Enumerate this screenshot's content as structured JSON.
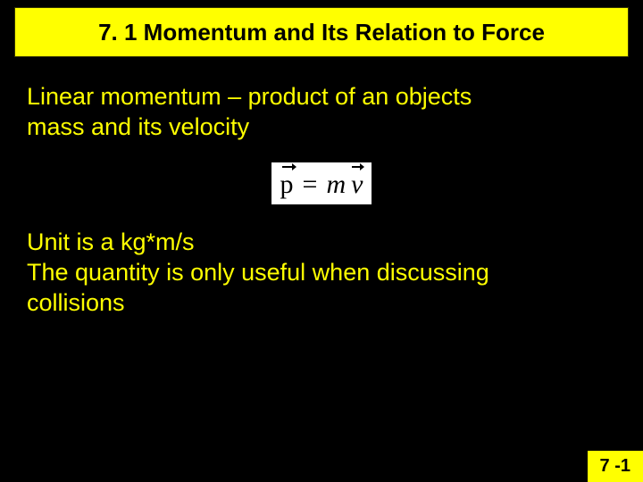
{
  "title": "7. 1 Momentum and Its Relation to Force",
  "body": {
    "definition_line1": "Linear momentum – product of an objects",
    "definition_line2": "mass and its velocity",
    "equation": {
      "lhs": "p",
      "operator": "=",
      "rhs_m": "m",
      "rhs_v": "v"
    },
    "unit_line": "Unit is a kg*m/s",
    "useful_line1": "The quantity is only useful when discussing",
    "useful_line2": "collisions"
  },
  "page_number": "7 -1",
  "colors": {
    "background": "#000000",
    "accent": "#ffff00",
    "text_on_accent": "#000000",
    "body_text": "#ffff00",
    "equation_bg": "#ffffff",
    "equation_text": "#000000"
  }
}
